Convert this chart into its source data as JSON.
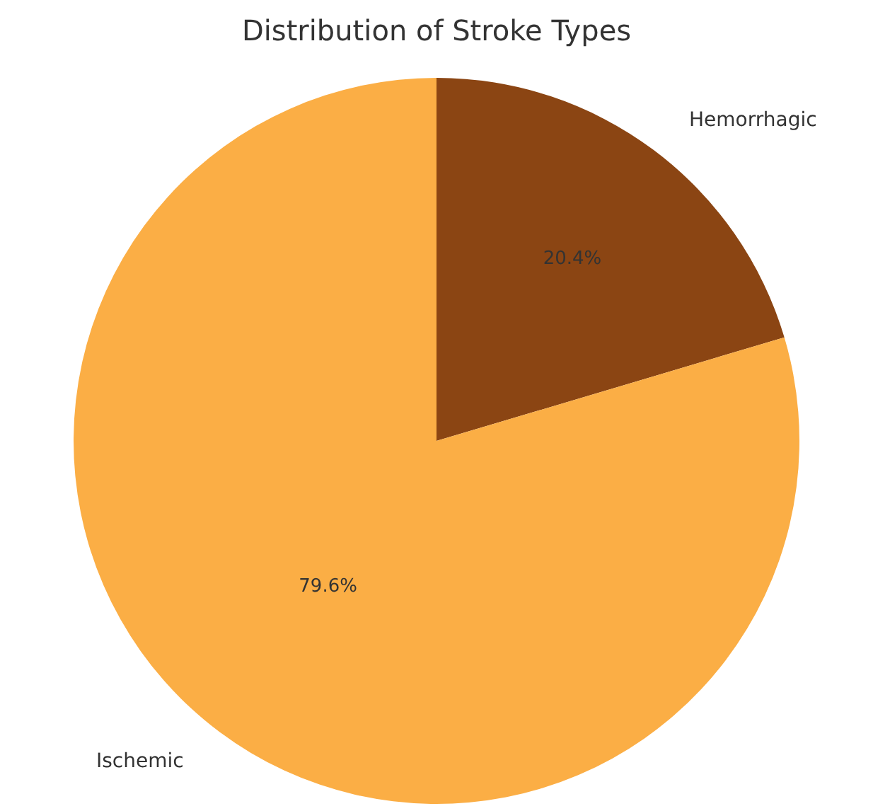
{
  "chart_data": {
    "type": "pie",
    "title": "Distribution of Stroke Types",
    "categories": [
      "Ischemic",
      "Hemorrhagic"
    ],
    "values": [
      79.6,
      20.4
    ],
    "colors": [
      "#fbae45",
      "#8b4513"
    ],
    "value_labels": [
      "79.6%",
      "20.4%"
    ]
  }
}
